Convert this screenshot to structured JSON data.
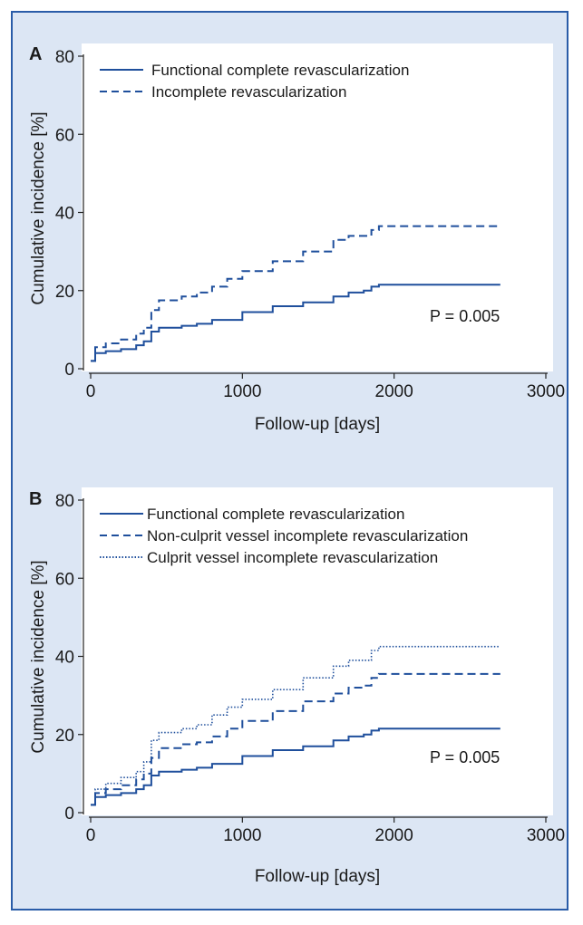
{
  "colors": {
    "series": "#1f4f9c",
    "frame_border": "#2a5ca8",
    "frame_bg": "#dce6f4"
  },
  "chart_data": [
    {
      "panel": "A",
      "type": "line",
      "xlabel": "Follow-up [days]",
      "ylabel": "Cumulative incidence [%]",
      "xlim": [
        0,
        3000
      ],
      "ylim": [
        0,
        80
      ],
      "xticks": [
        0,
        1000,
        2000,
        3000
      ],
      "yticks": [
        0,
        20,
        40,
        60,
        80
      ],
      "legend_position": "top-left",
      "annotation": "P = 0.005",
      "series": [
        {
          "name": "Functional complete revascularization",
          "style": "solid",
          "x": [
            0,
            30,
            100,
            200,
            300,
            350,
            400,
            450,
            600,
            700,
            800,
            1000,
            1200,
            1400,
            1600,
            1700,
            1800,
            1850,
            1900,
            2200,
            2500,
            2700
          ],
          "y": [
            2,
            4,
            4.5,
            5,
            6,
            7,
            9.5,
            10.5,
            11,
            11.5,
            12.5,
            14.5,
            16,
            17,
            18.5,
            19.5,
            20,
            21,
            21.5,
            21.5,
            21.5,
            21.5
          ]
        },
        {
          "name": "Incomplete revascularization",
          "style": "dashed",
          "x": [
            0,
            30,
            100,
            200,
            300,
            350,
            400,
            450,
            600,
            700,
            800,
            900,
            1000,
            1200,
            1400,
            1600,
            1700,
            1800,
            1850,
            1900,
            2200,
            2500,
            2700
          ],
          "y": [
            2,
            5.5,
            6.5,
            7.5,
            9,
            10.5,
            15,
            17.5,
            18.5,
            19.5,
            21,
            23,
            25,
            27.5,
            30,
            33,
            34,
            34,
            35.5,
            36.5,
            36.5,
            36.5,
            36.5
          ]
        }
      ]
    },
    {
      "panel": "B",
      "type": "line",
      "xlabel": "Follow-up [days]",
      "ylabel": "Cumulative incidence [%]",
      "xlim": [
        0,
        3000
      ],
      "ylim": [
        0,
        80
      ],
      "xticks": [
        0,
        1000,
        2000,
        3000
      ],
      "yticks": [
        0,
        20,
        40,
        60,
        80
      ],
      "legend_position": "top-left",
      "annotation": "P = 0.005",
      "series": [
        {
          "name": "Functional complete revascularization",
          "style": "solid",
          "x": [
            0,
            30,
            100,
            200,
            300,
            350,
            400,
            450,
            600,
            700,
            800,
            1000,
            1200,
            1400,
            1600,
            1700,
            1800,
            1850,
            1900,
            2200,
            2500,
            2700
          ],
          "y": [
            2,
            4,
            4.5,
            5,
            6,
            7,
            9.5,
            10.5,
            11,
            11.5,
            12.5,
            14.5,
            16,
            17,
            18.5,
            19.5,
            20,
            21,
            21.5,
            21.5,
            21.5,
            21.5
          ]
        },
        {
          "name": "Non-culprit vessel incomplete revascularization",
          "style": "dashed",
          "x": [
            0,
            30,
            100,
            200,
            300,
            350,
            400,
            450,
            600,
            700,
            800,
            900,
            1000,
            1200,
            1400,
            1600,
            1700,
            1800,
            1850,
            1900,
            2200,
            2500,
            2700
          ],
          "y": [
            2,
            5,
            6,
            7,
            8.5,
            10,
            14,
            16.5,
            17.5,
            18,
            19.5,
            21.5,
            23.5,
            26,
            28.5,
            30.5,
            32,
            32.5,
            34.5,
            35.5,
            35.5,
            35.5,
            35.5
          ]
        },
        {
          "name": "Culprit vessel incomplete revascularization",
          "style": "dotted",
          "x": [
            0,
            30,
            100,
            200,
            300,
            350,
            400,
            450,
            600,
            700,
            800,
            900,
            1000,
            1200,
            1400,
            1600,
            1700,
            1800,
            1850,
            1900,
            2200,
            2500,
            2700
          ],
          "y": [
            2,
            6,
            7.5,
            9,
            10.5,
            13,
            18.5,
            20.5,
            21.5,
            22.5,
            25,
            27,
            29,
            31.5,
            34.5,
            37.5,
            39,
            39,
            41.5,
            42.5,
            42.5,
            42.5,
            42.5
          ]
        }
      ]
    }
  ]
}
